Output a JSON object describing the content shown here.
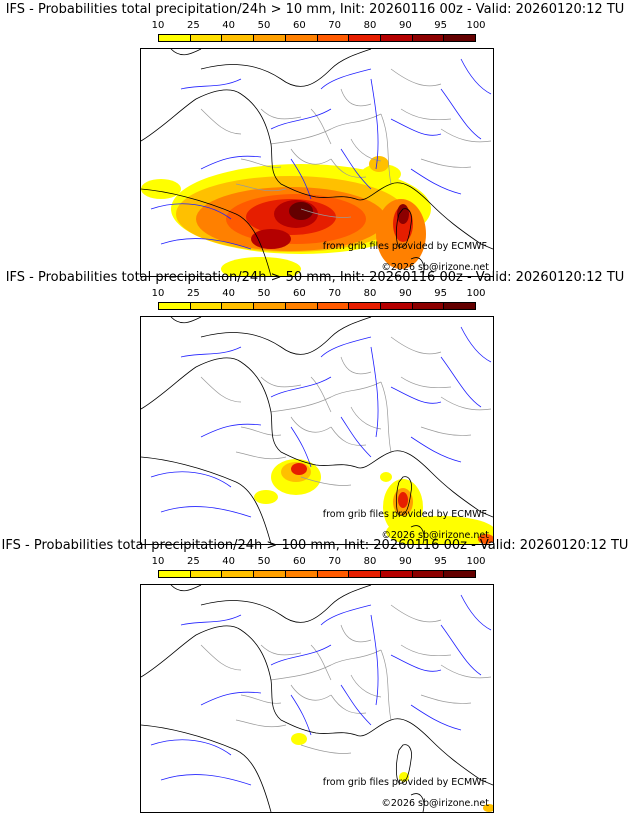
{
  "panels": [
    {
      "title": "IFS - Probabilities total precipitation/24h > 10 mm, Init: 20260116 00z - Valid: 20260120:12 TU",
      "threshold_mm": 10
    },
    {
      "title": "IFS - Probabilities total precipitation/24h > 50 mm, Init: 20260116 00z - Valid: 20260120:12 TU",
      "threshold_mm": 50
    },
    {
      "title": "IFS - Probabilities total precipitation/24h > 100 mm, Init: 20260116 00z - Valid: 20260120:12 TU",
      "threshold_mm": 100
    }
  ],
  "colorbar": {
    "ticks": [
      "10",
      "25",
      "40",
      "50",
      "60",
      "70",
      "80",
      "90",
      "95",
      "100"
    ],
    "colors": [
      "#ffff00",
      "#ffe000",
      "#ffc000",
      "#ffa000",
      "#ff8000",
      "#ff5a00",
      "#e61e00",
      "#b40000",
      "#8c0000",
      "#640000"
    ]
  },
  "credits": {
    "source": "from grib files provided by ECMWF",
    "copyright": "©2026 sb@irizone.net"
  },
  "colors": {
    "coast": "#000000",
    "rivers": "#2020ff",
    "borders": "#999999"
  }
}
